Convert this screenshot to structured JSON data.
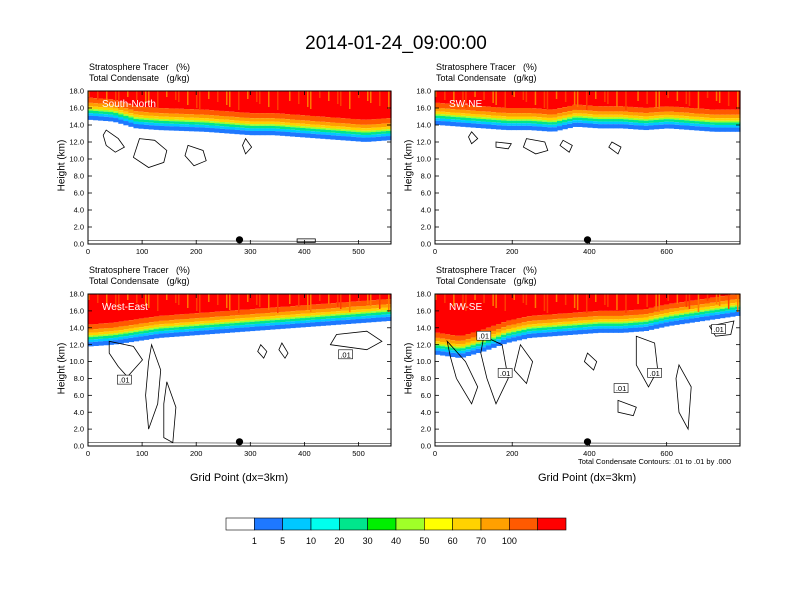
{
  "title": "2014-01-24_09:00:00",
  "colors": {
    "scale": [
      "#ffffff",
      "#1e78ff",
      "#00c8ff",
      "#00ffee",
      "#00e68c",
      "#00f000",
      "#a0ff28",
      "#ffff00",
      "#ffd200",
      "#ffa000",
      "#ff5a00",
      "#ff0000"
    ]
  },
  "chart_data": [
    {
      "type": "heatmap",
      "panel": "South-North",
      "label_line1": "Stratosphere Tracer   (%)",
      "label_line2": "Total Condensate   (g/kg)",
      "ylabel": "Height (km)",
      "xlabel": "",
      "xlim": [
        0,
        560
      ],
      "ylim": [
        0,
        18
      ],
      "xticks": [
        0,
        100,
        200,
        300,
        400,
        500
      ],
      "yticks": [
        "0.0",
        "2.0",
        "4.0",
        "6.0",
        "8.0",
        "10.0",
        "12.0",
        "14.0",
        "16.0",
        "18.0"
      ],
      "tropopause_km": [
        14.8,
        14.6,
        13.8,
        13.6,
        13.5,
        13.4,
        13.2,
        13.0,
        13.0,
        12.8,
        12.6,
        12.4,
        12.2,
        12.4
      ],
      "marker_x": 280
    },
    {
      "type": "heatmap",
      "panel": "SW-NE",
      "label_line1": "Stratosphere Tracer   (%)",
      "label_line2": "Total Condensate   (g/kg)",
      "ylabel": "Height (km)",
      "xlabel": "",
      "xlim": [
        0,
        790
      ],
      "ylim": [
        0,
        18
      ],
      "xticks": [
        0,
        200,
        400,
        600
      ],
      "yticks": [
        "0.0",
        "2.0",
        "4.0",
        "6.0",
        "8.0",
        "10.0",
        "12.0",
        "14.0",
        "16.0",
        "18.0"
      ],
      "tropopause_km": [
        14.2,
        14.0,
        13.8,
        13.6,
        13.6,
        13.4,
        14.0,
        13.8,
        13.8,
        13.6,
        13.8,
        13.6,
        13.4,
        13.4
      ],
      "marker_x": 395
    },
    {
      "type": "heatmap",
      "panel": "West-East",
      "label_line1": "Stratosphere Tracer   (%)",
      "label_line2": "Total Condensate   (g/kg)",
      "ylabel": "Height (km)",
      "xlabel": "Grid Point (dx=3km)",
      "xlim": [
        0,
        560
      ],
      "ylim": [
        0,
        18
      ],
      "xticks": [
        0,
        100,
        200,
        300,
        400,
        500
      ],
      "yticks": [
        "0.0",
        "2.0",
        "4.0",
        "6.0",
        "8.0",
        "10.0",
        "12.0",
        "14.0",
        "16.0",
        "18.0"
      ],
      "tropopause_km": [
        12.0,
        12.2,
        12.6,
        13.0,
        13.2,
        13.4,
        13.6,
        13.8,
        14.0,
        14.2,
        14.4,
        14.6,
        14.8,
        15.0
      ],
      "marker_x": 280,
      "contour_labels": [
        ".01",
        ".01"
      ]
    },
    {
      "type": "heatmap",
      "panel": "NW-SE",
      "label_line1": "Stratosphere Tracer   (%)",
      "label_line2": "Total Condensate   (g/kg)",
      "ylabel": "Height (km)",
      "xlabel": "Grid Point (dx=3km)",
      "xlim": [
        0,
        790
      ],
      "ylim": [
        0,
        18
      ],
      "xticks": [
        0,
        200,
        400,
        600
      ],
      "yticks": [
        "0.0",
        "2.0",
        "4.0",
        "6.0",
        "8.0",
        "10.0",
        "12.0",
        "14.0",
        "16.0",
        "18.0"
      ],
      "tropopause_km": [
        11.0,
        10.6,
        11.4,
        12.4,
        13.0,
        13.2,
        13.4,
        13.6,
        13.6,
        13.8,
        14.4,
        14.8,
        15.2,
        15.6
      ],
      "marker_x": 395,
      "contour_labels": [
        ".01",
        ".01",
        ".01",
        ".01",
        ".01"
      ],
      "note": "Total Condensate Contours: .01 to .01 by .000"
    }
  ],
  "colorbar": {
    "labels": [
      "1",
      "5",
      "10",
      "20",
      "30",
      "40",
      "50",
      "60",
      "70",
      "100"
    ]
  }
}
